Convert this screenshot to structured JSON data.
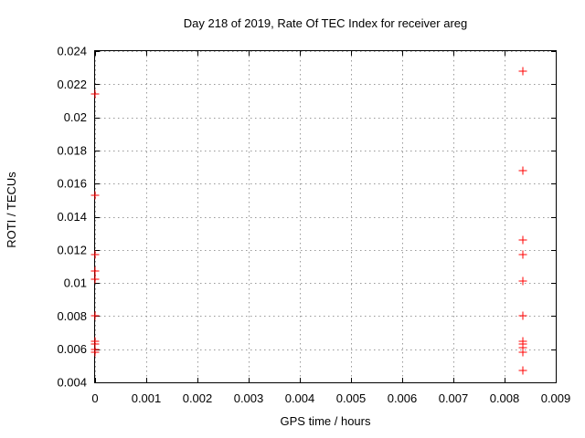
{
  "chart_data": {
    "type": "scatter",
    "title": "Day 218 of 2019, Rate Of TEC Index for receiver areg",
    "xlabel": "GPS time / hours",
    "ylabel": "ROTI / TECUs",
    "xlim": [
      0,
      0.009
    ],
    "ylim": [
      0.004,
      0.024
    ],
    "xticks": [
      0,
      0.001,
      0.002,
      0.003,
      0.004,
      0.005,
      0.006,
      0.007,
      0.008,
      0.009
    ],
    "xtick_labels": [
      "0",
      "0.001",
      "0.002",
      "0.003",
      "0.004",
      "0.005",
      "0.006",
      "0.007",
      "0.008",
      "0.009"
    ],
    "yticks": [
      0.004,
      0.006,
      0.008,
      0.01,
      0.012,
      0.014,
      0.016,
      0.018,
      0.02,
      0.022,
      0.024
    ],
    "ytick_labels": [
      "0.004",
      "0.006",
      "0.008",
      "0.01",
      "0.012",
      "0.014",
      "0.016",
      "0.018",
      "0.02",
      "0.022",
      "0.024"
    ],
    "grid": true,
    "legend": "none",
    "marker": "plus",
    "marker_color": "#ff0000",
    "grid_color": "#999999",
    "axis_color": "#000000",
    "background_color": "#ffffff",
    "series": [
      {
        "name": "roti-values",
        "color": "#ff0000",
        "points": [
          [
            0,
            0.0214
          ],
          [
            0,
            0.0153
          ],
          [
            0,
            0.0117
          ],
          [
            0,
            0.0107
          ],
          [
            0,
            0.0102
          ],
          [
            0,
            0.008
          ],
          [
            0,
            0.0065
          ],
          [
            0,
            0.0063
          ],
          [
            0,
            0.006
          ],
          [
            0,
            0.0058
          ],
          [
            0.00836,
            0.0228
          ],
          [
            0.00836,
            0.0168
          ],
          [
            0.00836,
            0.0126
          ],
          [
            0.00836,
            0.0117
          ],
          [
            0.00836,
            0.0101
          ],
          [
            0.00836,
            0.008
          ],
          [
            0.00836,
            0.0065
          ],
          [
            0.00836,
            0.0063
          ],
          [
            0.00836,
            0.0061
          ],
          [
            0.00836,
            0.0058
          ],
          [
            0.00836,
            0.0047
          ]
        ]
      }
    ]
  }
}
